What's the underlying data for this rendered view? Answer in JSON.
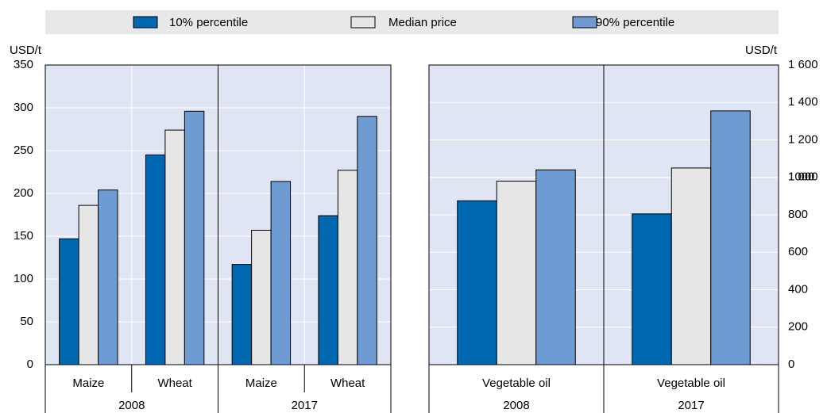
{
  "chart_data": [
    {
      "type": "bar",
      "y_label": "USD/t",
      "categories": [
        "Maize",
        "Wheat",
        "Maize",
        "Wheat"
      ],
      "groups": [
        "2008",
        "2017"
      ],
      "series": [
        {
          "name": "10% percentile",
          "color": "#0067b1",
          "values": [
            147,
            245,
            117,
            174
          ]
        },
        {
          "name": "Median price",
          "color": "#e6e6e6",
          "values": [
            186,
            274,
            157,
            227
          ]
        },
        {
          "name": "90% percentile",
          "color": "#6f9bd3",
          "values": [
            204,
            296,
            214,
            290
          ]
        }
      ],
      "ylim": [
        0,
        350
      ],
      "yticks": [
        0,
        50,
        100,
        150,
        200,
        250,
        300,
        350
      ],
      "grid": true
    },
    {
      "type": "bar",
      "y_label": "USD/t",
      "categories": [
        "Vegetable oil",
        "Vegetable oil"
      ],
      "groups": [
        "2008",
        "2017"
      ],
      "series": [
        {
          "color": "#0067b1",
          "values": [
            875,
            805
          ]
        },
        {
          "color": "#e6e6e6",
          "values": [
            980,
            1050
          ]
        },
        {
          "color": "#6f9bd3",
          "values": [
            1040,
            1355
          ]
        }
      ],
      "ylim": [
        0,
        1600
      ],
      "yticks": [
        0,
        200,
        400,
        600,
        800,
        1000,
        {
          "value": 1000,
          "label": "1 000"
        },
        {
          "value": 1200,
          "label": "1 200"
        },
        {
          "value": 1400,
          "label": "1 400"
        },
        {
          "value": 1600,
          "label": "1 600"
        }
      ],
      "grid": true
    }
  ]
}
